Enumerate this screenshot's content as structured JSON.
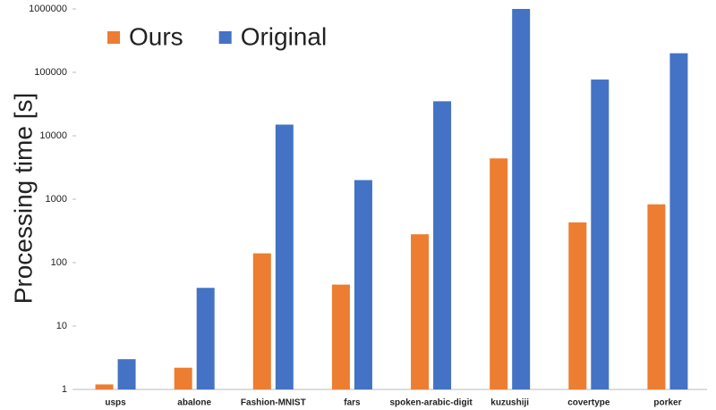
{
  "chart_data": {
    "type": "bar",
    "ylabel": "Processing time [s]",
    "categories": [
      "usps",
      "abalone",
      "Fashion-MNIST",
      "fars",
      "spoken-arabic-digit",
      "kuzushiji",
      "covertype",
      "porker"
    ],
    "series": [
      {
        "name": "Ours",
        "color": "#ed7d31",
        "values": [
          1.2,
          2.2,
          140,
          45,
          280,
          4400,
          430,
          830
        ]
      },
      {
        "name": "Original",
        "color": "#4472c4",
        "values": [
          3,
          40,
          15000,
          2000,
          35000,
          1000000,
          77000,
          200000
        ]
      }
    ],
    "ylim": [
      1,
      1000000
    ],
    "yticks": [
      1,
      10,
      100,
      1000,
      10000,
      100000,
      1000000
    ],
    "log_scale": true,
    "grid": false,
    "legend": "upper-left"
  }
}
